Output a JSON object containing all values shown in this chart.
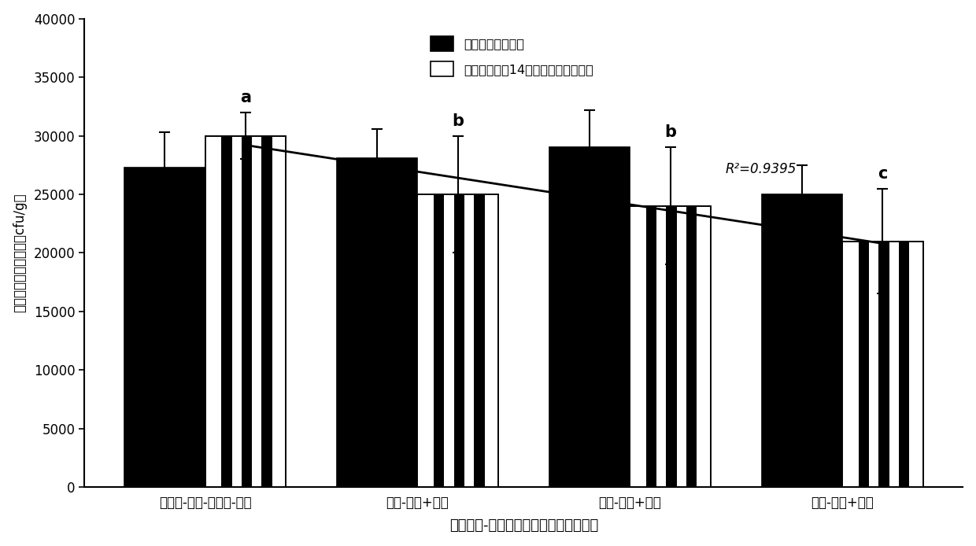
{
  "categories": [
    "（南瓜-芚菜-辣椒）-香蕉",
    "南瓜-香蕉+花生",
    "芚菜-香蕉+花生",
    "辣椒-香蕉+花生"
  ],
  "bar1_values": [
    27300,
    28100,
    29000,
    25000
  ],
  "bar1_errors": [
    3000,
    2500,
    3200,
    2500
  ],
  "bar2_values": [
    30000,
    25000,
    24000,
    21000
  ],
  "bar2_errors": [
    2000,
    5000,
    5000,
    4500
  ],
  "bar1_label": "土壤真菌起始数量",
  "bar2_label": "不同栽培模式14个月后土壤真菌数量",
  "ylabel": "土壤可培兿真菌数量（cfu/g）",
  "xlabel": "年际香蕉-花生间作与香蕉单作栽培模式",
  "ylim": [
    0,
    40000
  ],
  "yticks": [
    0,
    5000,
    10000,
    15000,
    20000,
    25000,
    30000,
    35000,
    40000
  ],
  "significance_labels": [
    "a",
    "b",
    "b",
    "c"
  ],
  "r_squared_text": "R²=0.9395",
  "r_squared_x": 2.45,
  "r_squared_y": 26800,
  "bar_width": 0.38,
  "bar1_color": "#000000",
  "bar2_color": "#ffffff",
  "bar2_edgecolor": "#000000",
  "error_color": "#000000",
  "background_color": "#ffffff",
  "fig_width": 12.4,
  "fig_height": 6.94,
  "dpi": 100
}
